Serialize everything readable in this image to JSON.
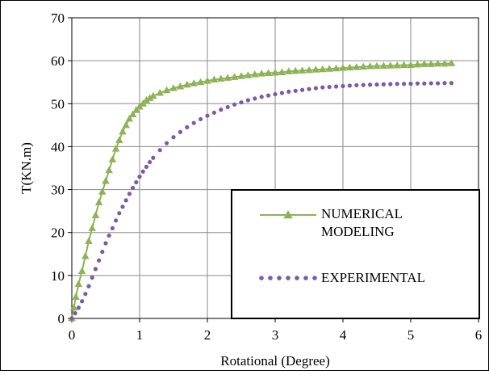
{
  "chart_data": {
    "type": "line",
    "title": "",
    "xlabel": "Rotational (Degree)",
    "ylabel": "T(KN.m)",
    "xlim": [
      0,
      6
    ],
    "ylim": [
      0,
      70
    ],
    "x_ticks": [
      "0",
      "1",
      "2",
      "3",
      "4",
      "5",
      "6"
    ],
    "y_ticks": [
      "0",
      "10",
      "20",
      "30",
      "40",
      "50",
      "60",
      "70"
    ],
    "grid": true,
    "legend_position": "lower-right",
    "series": [
      {
        "name": "NUMERICAL MODELING",
        "color": "#8db356",
        "marker": "triangle",
        "x": [
          0,
          0.03,
          0.06,
          0.1,
          0.15,
          0.2,
          0.25,
          0.3,
          0.35,
          0.4,
          0.45,
          0.5,
          0.55,
          0.6,
          0.65,
          0.7,
          0.75,
          0.8,
          0.85,
          0.9,
          0.95,
          1.0,
          1.05,
          1.1,
          1.15,
          1.2,
          1.3,
          1.4,
          1.5,
          1.6,
          1.7,
          1.8,
          1.9,
          2.0,
          2.1,
          2.2,
          2.3,
          2.4,
          2.5,
          2.6,
          2.7,
          2.8,
          2.9,
          3.0,
          3.1,
          3.2,
          3.3,
          3.4,
          3.5,
          3.6,
          3.7,
          3.8,
          3.9,
          4.0,
          4.1,
          4.2,
          4.3,
          4.4,
          4.5,
          4.6,
          4.7,
          4.8,
          4.9,
          5.0,
          5.1,
          5.2,
          5.3,
          5.4,
          5.5,
          5.6
        ],
        "y": [
          0,
          2.5,
          5,
          8,
          11,
          14.5,
          18,
          21,
          24,
          27,
          29.5,
          32,
          34.5,
          37,
          39.5,
          41.5,
          43.5,
          45,
          46.5,
          47.5,
          48.5,
          49.3,
          50,
          50.8,
          51.3,
          51.8,
          52.5,
          53.1,
          53.6,
          54,
          54.4,
          54.7,
          55,
          55.3,
          55.6,
          55.8,
          56,
          56.2,
          56.4,
          56.6,
          56.8,
          57,
          57.1,
          57.2,
          57.3,
          57.5,
          57.6,
          57.7,
          57.8,
          57.9,
          58,
          58.1,
          58.2,
          58.3,
          58.4,
          58.5,
          58.6,
          58.7,
          58.75,
          58.8,
          58.85,
          58.9,
          59,
          59,
          59.1,
          59.2,
          59.2,
          59.3,
          59.3,
          59.4
        ]
      },
      {
        "name": "EXPERIMENTAL",
        "color": "#7a5ba3",
        "marker": "dot",
        "x": [
          0,
          0.05,
          0.1,
          0.15,
          0.2,
          0.25,
          0.3,
          0.35,
          0.4,
          0.45,
          0.5,
          0.55,
          0.6,
          0.65,
          0.7,
          0.75,
          0.8,
          0.85,
          0.9,
          0.95,
          1.0,
          1.05,
          1.1,
          1.15,
          1.2,
          1.3,
          1.4,
          1.5,
          1.6,
          1.7,
          1.8,
          1.9,
          2.0,
          2.1,
          2.2,
          2.3,
          2.4,
          2.5,
          2.6,
          2.7,
          2.8,
          2.9,
          3.0,
          3.1,
          3.2,
          3.3,
          3.4,
          3.5,
          3.6,
          3.7,
          3.8,
          3.9,
          4.0,
          4.1,
          4.2,
          4.3,
          4.4,
          4.5,
          4.6,
          4.7,
          4.8,
          4.9,
          5.0,
          5.1,
          5.2,
          5.3,
          5.4,
          5.5,
          5.6
        ],
        "y": [
          0,
          1.2,
          2.5,
          4,
          5.7,
          7.5,
          9.5,
          11.5,
          13.5,
          15.5,
          17.5,
          19.3,
          21,
          22.8,
          24.5,
          26,
          27.5,
          29,
          30.4,
          31.7,
          33,
          34.2,
          35.3,
          36.4,
          37.4,
          39.2,
          40.8,
          42.2,
          43.4,
          44.5,
          45.5,
          46.4,
          47.2,
          47.9,
          48.6,
          49.2,
          49.8,
          50.3,
          50.8,
          51.2,
          51.6,
          51.9,
          52.2,
          52.5,
          52.8,
          53,
          53.2,
          53.4,
          53.6,
          53.8,
          53.9,
          54,
          54.1,
          54.2,
          54.3,
          54.35,
          54.4,
          54.45,
          54.5,
          54.55,
          54.6,
          54.6,
          54.65,
          54.7,
          54.7,
          54.75,
          54.75,
          54.8,
          54.8
        ]
      }
    ]
  }
}
